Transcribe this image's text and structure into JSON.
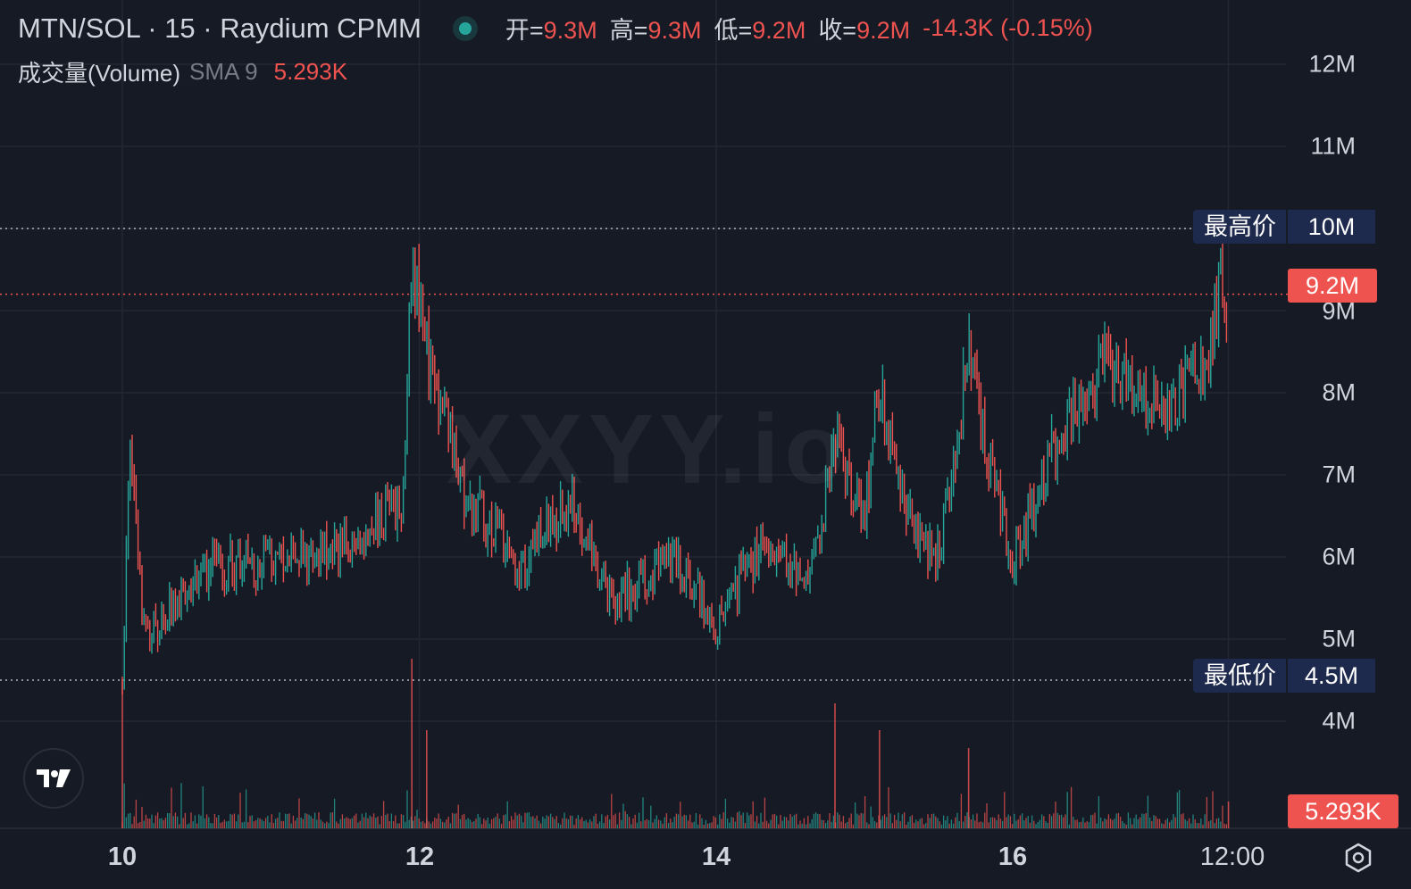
{
  "header": {
    "symbol": "MTN/SOL · 15 · Raydium CPMM",
    "open_key": "开=",
    "open_val": "9.3M",
    "high_key": "高=",
    "high_val": "9.3M",
    "low_key": "低=",
    "low_val": "9.2M",
    "close_key": "收=",
    "close_val": "9.2M",
    "change": "-14.3K (-0.15%)"
  },
  "volume_legend": {
    "label": "成交量(Volume)",
    "sma": "SMA 9",
    "value": "5.293K"
  },
  "watermark": "XXYY.io",
  "price_axis": {
    "labels": [
      "12M",
      "11M",
      "10M",
      "9M",
      "8M",
      "7M",
      "6M",
      "5M",
      "4M"
    ]
  },
  "tags": {
    "high_name": "最高价",
    "high_value": "10M",
    "low_name": "最低价",
    "low_value": "4.5M",
    "last_price": "9.2M",
    "last_volume": "5.293K"
  },
  "time_axis": {
    "labels": [
      "10",
      "12",
      "14",
      "16",
      "12:00"
    ]
  },
  "colors": {
    "up": "#26a69a",
    "down": "#ef5350",
    "background": "#161a25",
    "grid": "#232733"
  },
  "icons": {
    "logo": "tradingview-logo-icon",
    "settings": "settings-gear-icon",
    "status": "live-status-dot-icon"
  },
  "chart_data": {
    "type": "candlestick",
    "price_unit": "market cap",
    "ylim": [
      3500000,
      12000000
    ],
    "y_ticks": [
      4000000,
      5000000,
      6000000,
      7000000,
      8000000,
      9000000,
      10000000,
      11000000,
      12000000
    ],
    "all_time_high": 10000000,
    "all_time_low": 4500000,
    "last": 9200000,
    "close_trend": [
      {
        "t": "10",
        "v": 4500000
      },
      {
        "t": "10.05",
        "v": 7600000
      },
      {
        "t": "10.15",
        "v": 5000000
      },
      {
        "t": "10.6",
        "v": 5900000
      },
      {
        "t": "11",
        "v": 5900000
      },
      {
        "t": "11.6",
        "v": 6200000
      },
      {
        "t": "11.9",
        "v": 6700000
      },
      {
        "t": "11.95",
        "v": 9700000
      },
      {
        "t": "12.05",
        "v": 8500000
      },
      {
        "t": "12.3",
        "v": 6800000
      },
      {
        "t": "12.7",
        "v": 5900000
      },
      {
        "t": "13",
        "v": 6700000
      },
      {
        "t": "13.3",
        "v": 5400000
      },
      {
        "t": "13.7",
        "v": 6000000
      },
      {
        "t": "14",
        "v": 5200000
      },
      {
        "t": "14.3",
        "v": 6100000
      },
      {
        "t": "14.65",
        "v": 5800000
      },
      {
        "t": "14.8",
        "v": 7400000
      },
      {
        "t": "15",
        "v": 6500000
      },
      {
        "t": "15.1",
        "v": 8000000
      },
      {
        "t": "15.3",
        "v": 6400000
      },
      {
        "t": "15.5",
        "v": 6000000
      },
      {
        "t": "15.7",
        "v": 8400000
      },
      {
        "t": "15.85",
        "v": 7000000
      },
      {
        "t": "16",
        "v": 6000000
      },
      {
        "t": "16.3",
        "v": 7400000
      },
      {
        "t": "16.6",
        "v": 8400000
      },
      {
        "t": "17",
        "v": 7800000
      },
      {
        "t": "17.3",
        "v": 8300000
      },
      {
        "t": "17.4",
        "v": 9500000
      },
      {
        "t": "17.45",
        "v": 9200000
      }
    ]
  }
}
